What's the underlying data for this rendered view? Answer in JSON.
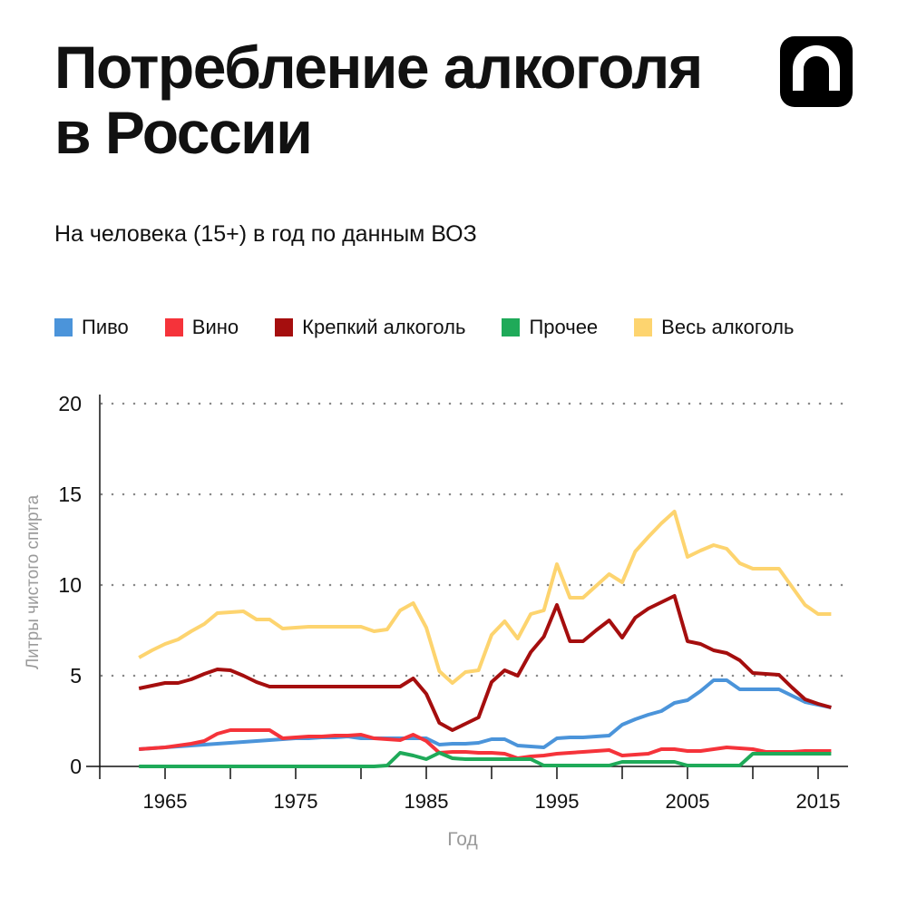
{
  "header": {
    "title_line1": "Потребление алкоголя",
    "title_line2": "в России",
    "subtitle": "На человека (15+) в год по данным ВОЗ",
    "logo_icon": "n-logo-icon"
  },
  "chart_data": {
    "type": "line",
    "title": "Потребление алкоголя в России",
    "subtitle": "На человека (15+) в год по данным ВОЗ",
    "xlabel": "Год",
    "ylabel": "Литры чистого спирта",
    "xlim": [
      1960,
      2017
    ],
    "ylim": [
      0,
      20
    ],
    "xticks": [
      1965,
      1975,
      1985,
      1995,
      2005,
      2015
    ],
    "xticks_minor": [
      1960,
      1965,
      1970,
      1975,
      1980,
      1985,
      1990,
      1995,
      2000,
      2005,
      2010,
      2015
    ],
    "yticks": [
      0,
      5,
      10,
      15,
      20
    ],
    "grid": "horizontal dotted",
    "legend_placement": "top",
    "x": [
      1963,
      1964,
      1965,
      1966,
      1967,
      1968,
      1969,
      1970,
      1971,
      1972,
      1973,
      1974,
      1975,
      1976,
      1977,
      1978,
      1979,
      1980,
      1981,
      1982,
      1983,
      1984,
      1985,
      1986,
      1987,
      1988,
      1989,
      1990,
      1991,
      1992,
      1993,
      1994,
      1995,
      1996,
      1997,
      1998,
      1999,
      2000,
      2001,
      2002,
      2003,
      2004,
      2005,
      2006,
      2007,
      2008,
      2009,
      2010,
      2011,
      2012,
      2013,
      2014,
      2015,
      2016
    ],
    "series": [
      {
        "name": "Пиво",
        "color": "#4b94da",
        "values": [
          0.95,
          1.0,
          1.05,
          1.1,
          1.15,
          1.2,
          1.25,
          1.3,
          1.35,
          1.4,
          1.45,
          1.5,
          1.55,
          1.55,
          1.6,
          1.6,
          1.65,
          1.55,
          1.55,
          1.55,
          1.55,
          1.55,
          1.55,
          1.2,
          1.25,
          1.25,
          1.3,
          1.5,
          1.5,
          1.15,
          1.1,
          1.05,
          1.55,
          1.6,
          1.6,
          1.65,
          1.7,
          2.3,
          2.6,
          2.85,
          3.05,
          3.5,
          3.65,
          4.15,
          4.75,
          4.75,
          4.25,
          4.25,
          4.25,
          4.25,
          3.9,
          3.55,
          3.4,
          3.25
        ]
      },
      {
        "name": "Вино",
        "color": "#f5333a",
        "values": [
          0.95,
          1.0,
          1.05,
          1.15,
          1.25,
          1.4,
          1.8,
          2.0,
          2.0,
          2.0,
          2.0,
          1.55,
          1.6,
          1.65,
          1.65,
          1.7,
          1.7,
          1.75,
          1.55,
          1.5,
          1.45,
          1.75,
          1.4,
          0.75,
          0.8,
          0.8,
          0.75,
          0.75,
          0.7,
          0.45,
          0.55,
          0.6,
          0.7,
          0.75,
          0.8,
          0.85,
          0.9,
          0.6,
          0.65,
          0.7,
          0.95,
          0.95,
          0.85,
          0.85,
          0.95,
          1.05,
          1.0,
          0.95,
          0.8,
          0.8,
          0.8,
          0.85,
          0.85,
          0.85
        ]
      },
      {
        "name": "Крепкий алкоголь",
        "color": "#a50e0e",
        "values": [
          4.3,
          4.45,
          4.6,
          4.6,
          4.8,
          5.1,
          5.35,
          5.3,
          5.0,
          4.65,
          4.4,
          4.4,
          4.4,
          4.4,
          4.4,
          4.4,
          4.4,
          4.4,
          4.4,
          4.4,
          4.4,
          4.85,
          4.0,
          2.4,
          2.0,
          2.35,
          2.7,
          4.65,
          5.3,
          5.0,
          6.3,
          7.15,
          8.9,
          6.9,
          6.9,
          7.5,
          8.05,
          7.1,
          8.2,
          8.7,
          9.05,
          9.4,
          6.9,
          6.75,
          6.4,
          6.25,
          5.85,
          5.15,
          5.1,
          5.05,
          4.35,
          3.7,
          3.45,
          3.25
        ]
      },
      {
        "name": "Прочее",
        "color": "#1faa59",
        "values": [
          0,
          0,
          0,
          0,
          0,
          0,
          0,
          0,
          0,
          0,
          0,
          0,
          0,
          0,
          0,
          0,
          0,
          0,
          0,
          0.05,
          0.75,
          0.6,
          0.4,
          0.75,
          0.45,
          0.4,
          0.4,
          0.4,
          0.4,
          0.4,
          0.4,
          0.05,
          0.05,
          0.05,
          0.05,
          0.05,
          0.05,
          0.25,
          0.25,
          0.25,
          0.25,
          0.25,
          0.05,
          0.05,
          0.05,
          0.05,
          0.05,
          0.7,
          0.7,
          0.7,
          0.7,
          0.7,
          0.7,
          0.7
        ]
      },
      {
        "name": "Весь алкоголь",
        "color": "#fdd46f",
        "values": [
          6.0,
          6.4,
          6.75,
          7.0,
          7.45,
          7.85,
          8.45,
          8.5,
          8.55,
          8.1,
          8.1,
          7.6,
          7.65,
          7.7,
          7.7,
          7.7,
          7.7,
          7.7,
          7.45,
          7.55,
          8.6,
          9.0,
          7.65,
          5.25,
          4.6,
          5.2,
          5.3,
          7.25,
          8.0,
          7.05,
          8.4,
          8.6,
          11.15,
          9.3,
          9.3,
          9.95,
          10.6,
          10.15,
          11.85,
          12.65,
          13.4,
          14.05,
          11.55,
          11.9,
          12.2,
          12.0,
          11.2,
          10.9,
          10.9,
          10.9,
          9.9,
          8.9,
          8.4,
          8.4
        ]
      }
    ]
  }
}
